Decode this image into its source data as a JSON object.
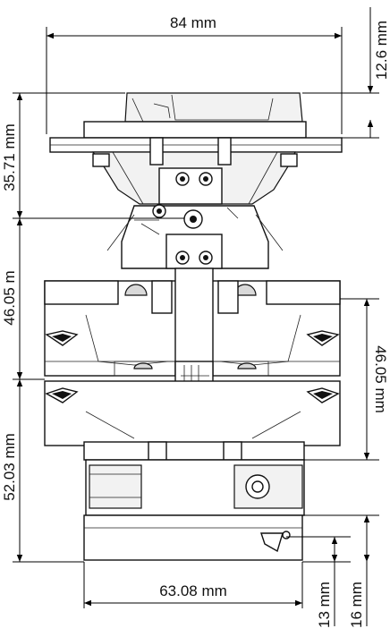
{
  "dimensions": {
    "top_width": "84 mm",
    "top_right_height": "12.6 mm",
    "left_upper": "35.71 mm",
    "left_middle": "46.05 m",
    "left_lower": "52.03 mm",
    "right_middle": "46.05 mm",
    "bottom_width": "63.08 mm",
    "bottom_right_a": "13 mm",
    "bottom_right_b": "16 mm"
  },
  "colors": {
    "line": "#000000",
    "background": "#ffffff",
    "part_fill": "#f2f2f2",
    "part_shade": "#d9d9d9"
  }
}
